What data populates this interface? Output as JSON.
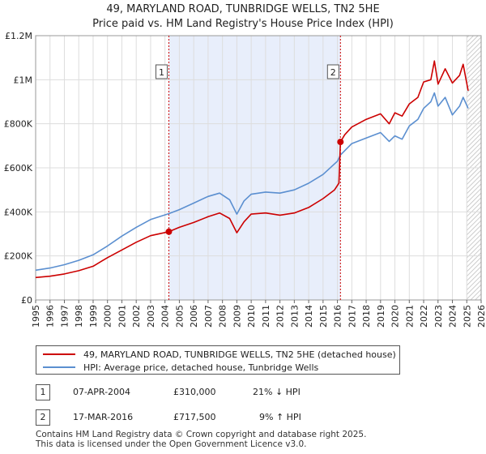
{
  "title_line1": "49, MARYLAND ROAD, TUNBRIDGE WELLS, TN2 5HE",
  "title_line2": "Price paid vs. HM Land Registry's House Price Index (HPI)",
  "colors": {
    "property": "#cc0000",
    "hpi": "#5b8fd0",
    "shade": "#e8eefb",
    "grid": "#dddddd",
    "vline": "#cc0000"
  },
  "chart_data": {
    "type": "line",
    "title": "Price paid vs. HM Land Registry's House Price Index (HPI)",
    "xlabel": "",
    "ylabel": "",
    "xlim": [
      1995,
      2026
    ],
    "ylim": [
      0,
      1200000
    ],
    "y_ticks": [
      0,
      200000,
      400000,
      600000,
      800000,
      1000000,
      1200000
    ],
    "y_tick_labels": [
      "£0",
      "£200K",
      "£400K",
      "£600K",
      "£800K",
      "£1M",
      "£1.2M"
    ],
    "x_ticks": [
      1995,
      1996,
      1997,
      1998,
      1999,
      2000,
      2001,
      2002,
      2003,
      2004,
      2005,
      2006,
      2007,
      2008,
      2009,
      2010,
      2011,
      2012,
      2013,
      2014,
      2015,
      2016,
      2017,
      2018,
      2019,
      2020,
      2021,
      2022,
      2023,
      2024,
      2025,
      2026
    ],
    "x_tick_labels": [
      "1995",
      "1996",
      "1997",
      "1998",
      "1999",
      "2000",
      "2001",
      "2002",
      "2003",
      "2004",
      "2005",
      "2006",
      "2007",
      "2008",
      "2009",
      "2010",
      "2011",
      "2012",
      "2013",
      "2014",
      "2015",
      "2016",
      "2017",
      "2018",
      "2019",
      "2020",
      "2021",
      "2022",
      "2023",
      "2024",
      "2025",
      "2026"
    ],
    "shaded_range": [
      2004.27,
      2016.21
    ],
    "projection_start": 2025.0,
    "series": [
      {
        "name": "49, MARYLAND ROAD, TUNBRIDGE WELLS, TN2 5HE (detached house)",
        "x": [
          1995,
          1996,
          1997,
          1998,
          1999,
          2000,
          2001,
          2002,
          2003,
          2004.27,
          2005,
          2006,
          2007,
          2007.8,
          2008.5,
          2009.0,
          2009.5,
          2010,
          2011,
          2012,
          2013,
          2014,
          2015,
          2015.8,
          2016.1,
          2016.21,
          2016.5,
          2017,
          2018,
          2019,
          2019.6,
          2020,
          2020.5,
          2021,
          2021.6,
          2022,
          2022.5,
          2022.75,
          2023,
          2023.5,
          2024,
          2024.5,
          2024.75,
          2025.1
        ],
        "values": [
          102000,
          108000,
          118000,
          133000,
          153000,
          192000,
          227000,
          262000,
          292000,
          310000,
          330000,
          352000,
          378000,
          395000,
          370000,
          305000,
          355000,
          390000,
          395000,
          385000,
          395000,
          420000,
          460000,
          500000,
          530000,
          717500,
          750000,
          785000,
          820000,
          845000,
          800000,
          850000,
          835000,
          890000,
          920000,
          990000,
          1000000,
          1085000,
          980000,
          1050000,
          985000,
          1020000,
          1070000,
          950000
        ]
      },
      {
        "name": "HPI: Average price, detached house, Tunbridge Wells",
        "x": [
          1995,
          1996,
          1997,
          1998,
          1999,
          2000,
          2001,
          2002,
          2003,
          2004.27,
          2005,
          2006,
          2007,
          2007.8,
          2008.5,
          2009.0,
          2009.5,
          2010,
          2011,
          2012,
          2013,
          2014,
          2015,
          2016,
          2016.21,
          2017,
          2018,
          2019,
          2019.6,
          2020,
          2020.5,
          2021,
          2021.6,
          2022,
          2022.5,
          2022.75,
          2023,
          2023.5,
          2024,
          2024.5,
          2024.75,
          2025.1
        ],
        "values": [
          135000,
          145000,
          160000,
          180000,
          205000,
          245000,
          290000,
          330000,
          365000,
          392000,
          410000,
          440000,
          470000,
          485000,
          455000,
          390000,
          450000,
          480000,
          490000,
          485000,
          500000,
          530000,
          570000,
          630000,
          658000,
          710000,
          735000,
          760000,
          720000,
          745000,
          730000,
          790000,
          820000,
          870000,
          900000,
          940000,
          880000,
          920000,
          840000,
          880000,
          920000,
          870000
        ]
      }
    ],
    "annotations": [
      {
        "label": "1",
        "x": 2004.27,
        "value": 310000
      },
      {
        "label": "2",
        "x": 2016.21,
        "value": 717500
      }
    ],
    "legend": "below"
  },
  "legend": [
    {
      "label": "49, MARYLAND ROAD, TUNBRIDGE WELLS, TN2 5HE (detached house)"
    },
    {
      "label": "HPI: Average price, detached house, Tunbridge Wells"
    }
  ],
  "transactions": [
    {
      "num": "1",
      "date": "07-APR-2004",
      "price": "£310,000",
      "hpi": "21% ↓ HPI"
    },
    {
      "num": "2",
      "date": "17-MAR-2016",
      "price": "£717,500",
      "hpi": "9% ↑ HPI"
    }
  ],
  "footer_line1": "Contains HM Land Registry data © Crown copyright and database right 2025.",
  "footer_line2": "This data is licensed under the Open Government Licence v3.0."
}
